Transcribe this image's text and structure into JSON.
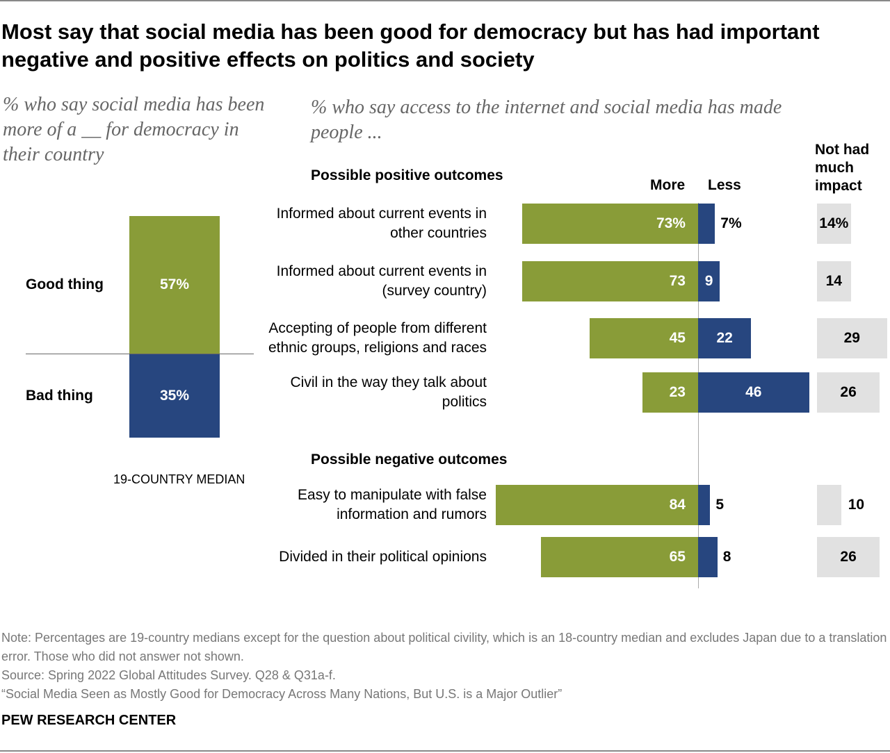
{
  "title": "Most say that social media has been good for democracy but has had important negative and positive effects on politics and society",
  "colors": {
    "more": "#899c38",
    "less": "#27467f",
    "no_impact": "#e1e1e1",
    "axis": "#aaaaaa"
  },
  "chart_data": [
    {
      "type": "bar",
      "subtitle": "% who say social media has been more of a __ for democracy in their country",
      "footer_label": "19-COUNTRY MEDIAN",
      "series": [
        {
          "name": "Good thing",
          "value": 57,
          "label": "57%"
        },
        {
          "name": "Bad thing",
          "value": 35,
          "label": "35%"
        }
      ]
    },
    {
      "type": "bar",
      "subtitle": "% who say access to the internet and social media has made people ...",
      "column_headers": {
        "more": "More",
        "less": "Less",
        "none": "Not had much impact"
      },
      "groups": [
        {
          "heading": "Possible positive outcomes",
          "items": [
            {
              "category": "Informed about current events in other countries",
              "more": 73,
              "less": 7,
              "none": 14,
              "labels": [
                "73%",
                "7%",
                "14%"
              ]
            },
            {
              "category": "Informed about current events in (survey country)",
              "more": 73,
              "less": 9,
              "none": 14,
              "labels": [
                "73",
                "9",
                "14"
              ]
            },
            {
              "category": "Accepting of people from different ethnic groups, religions and races",
              "more": 45,
              "less": 22,
              "none": 29,
              "labels": [
                "45",
                "22",
                "29"
              ]
            },
            {
              "category": "Civil in the way they talk about politics",
              "more": 23,
              "less": 46,
              "none": 26,
              "labels": [
                "23",
                "46",
                "26"
              ]
            }
          ]
        },
        {
          "heading": "Possible negative outcomes",
          "items": [
            {
              "category": "Easy to manipulate with false information and rumors",
              "more": 84,
              "less": 5,
              "none": 10,
              "labels": [
                "84",
                "5",
                "10"
              ]
            },
            {
              "category": "Divided in their political opinions",
              "more": 65,
              "less": 8,
              "none": 26,
              "labels": [
                "65",
                "8",
                "26"
              ]
            }
          ]
        }
      ]
    }
  ],
  "footer": {
    "note": "Note: Percentages are 19-country medians except for the question about political civility, which is an 18-country median and excludes Japan due to a translation error. Those who did not answer not shown.",
    "source": "Source: Spring 2022 Global Attitudes Survey. Q28 & Q31a-f.",
    "report": "“Social Media Seen as Mostly Good for Democracy Across Many Nations, But U.S. is a Major Outlier”",
    "brand": "PEW RESEARCH CENTER"
  }
}
